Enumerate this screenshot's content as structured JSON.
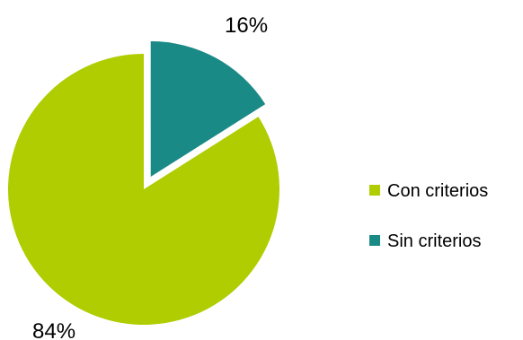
{
  "chart_data": {
    "type": "pie",
    "categories": [
      "Con criterios",
      "Sin criterios"
    ],
    "values": [
      84,
      16
    ],
    "data_labels": [
      "84%",
      "16%"
    ],
    "colors": [
      "#AFCD00",
      "#1A8A86"
    ],
    "exploded": [
      false,
      true
    ],
    "start_angle_deg": 0,
    "direction": "clockwise",
    "legend_position": "right",
    "title": ""
  }
}
